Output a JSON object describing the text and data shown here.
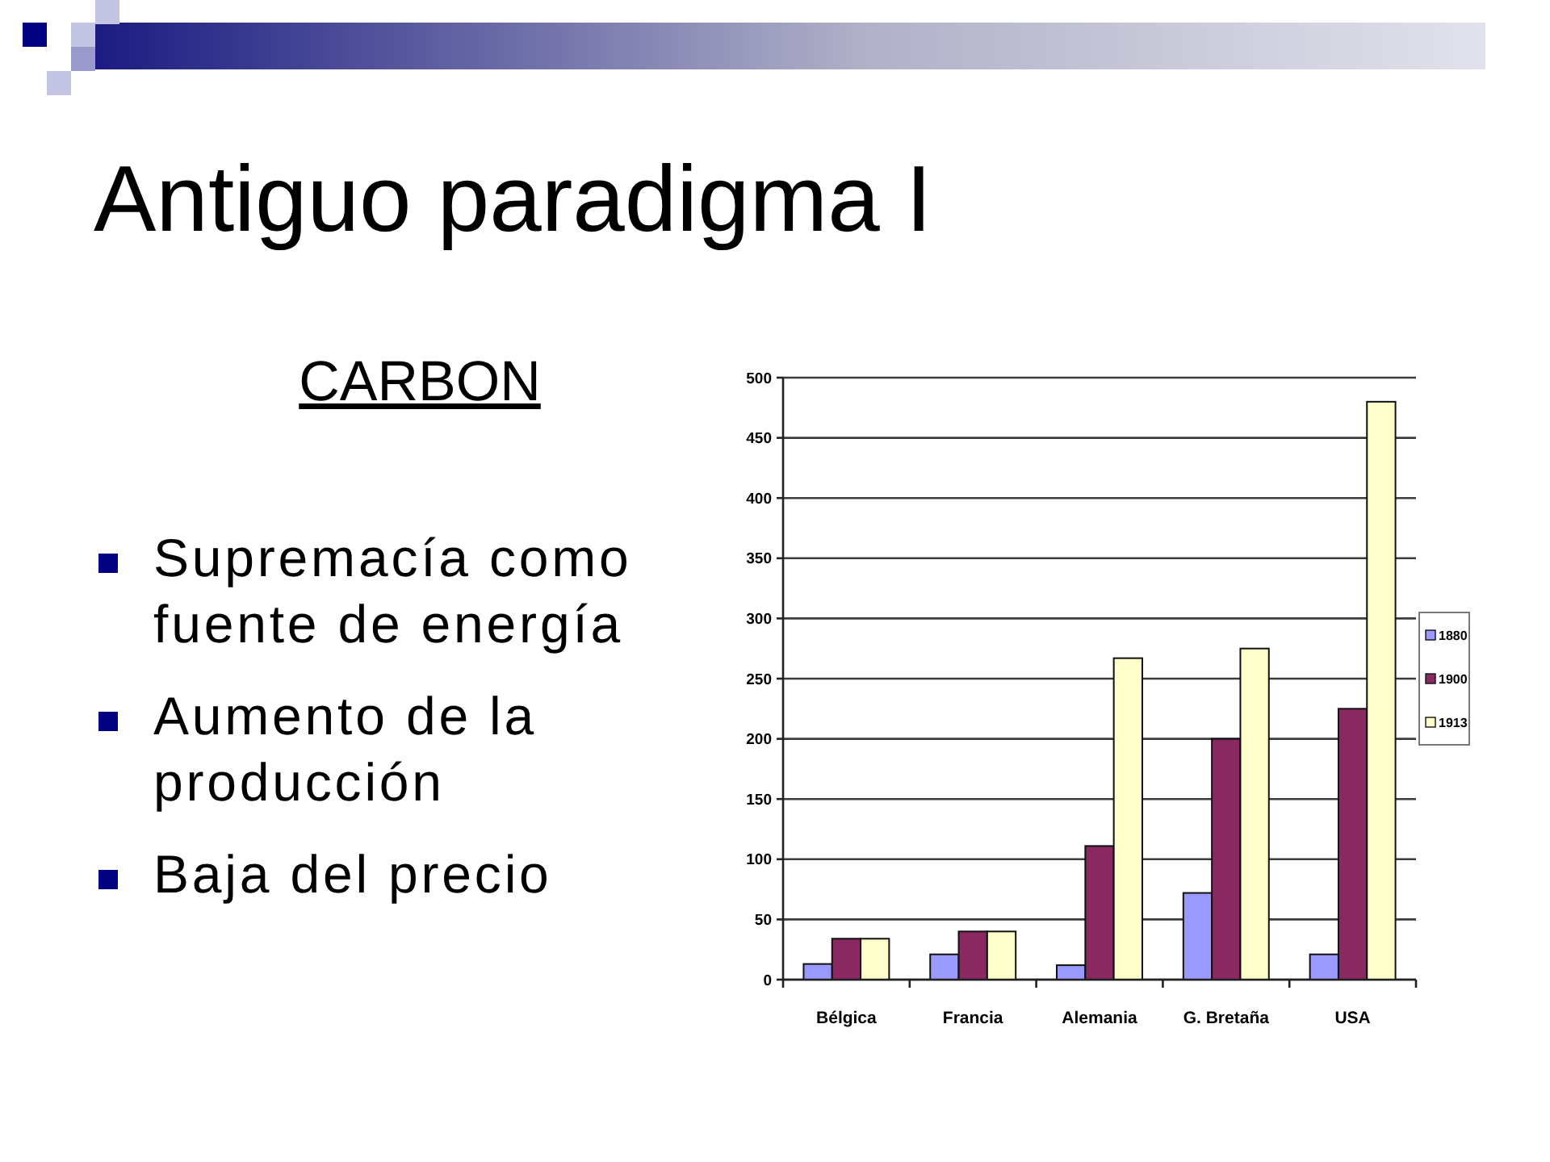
{
  "chart_data": {
    "type": "bar",
    "title": "Antiguo paradigma I",
    "subtitle": "CARBON",
    "annotations": [
      "Supremacía como fuente de energía",
      "Aumento de la producción",
      "Baja del precio"
    ],
    "categories": [
      "Bélgica",
      "Francia",
      "Alemania",
      "G. Bretaña",
      "USA"
    ],
    "series": [
      {
        "name": "1880",
        "color": "#9999ff",
        "values": [
          13,
          21,
          12,
          72,
          21
        ]
      },
      {
        "name": "1900",
        "color": "#8a2862",
        "values": [
          34,
          40,
          111,
          200,
          225
        ]
      },
      {
        "name": "1913",
        "color": "#ffffcc",
        "values": [
          34,
          40,
          267,
          275,
          480
        ]
      }
    ],
    "ylim": [
      0,
      500
    ],
    "yticks": [
      0,
      50,
      100,
      150,
      200,
      250,
      300,
      350,
      400,
      450,
      500
    ],
    "grid": "y",
    "legend": "right"
  }
}
